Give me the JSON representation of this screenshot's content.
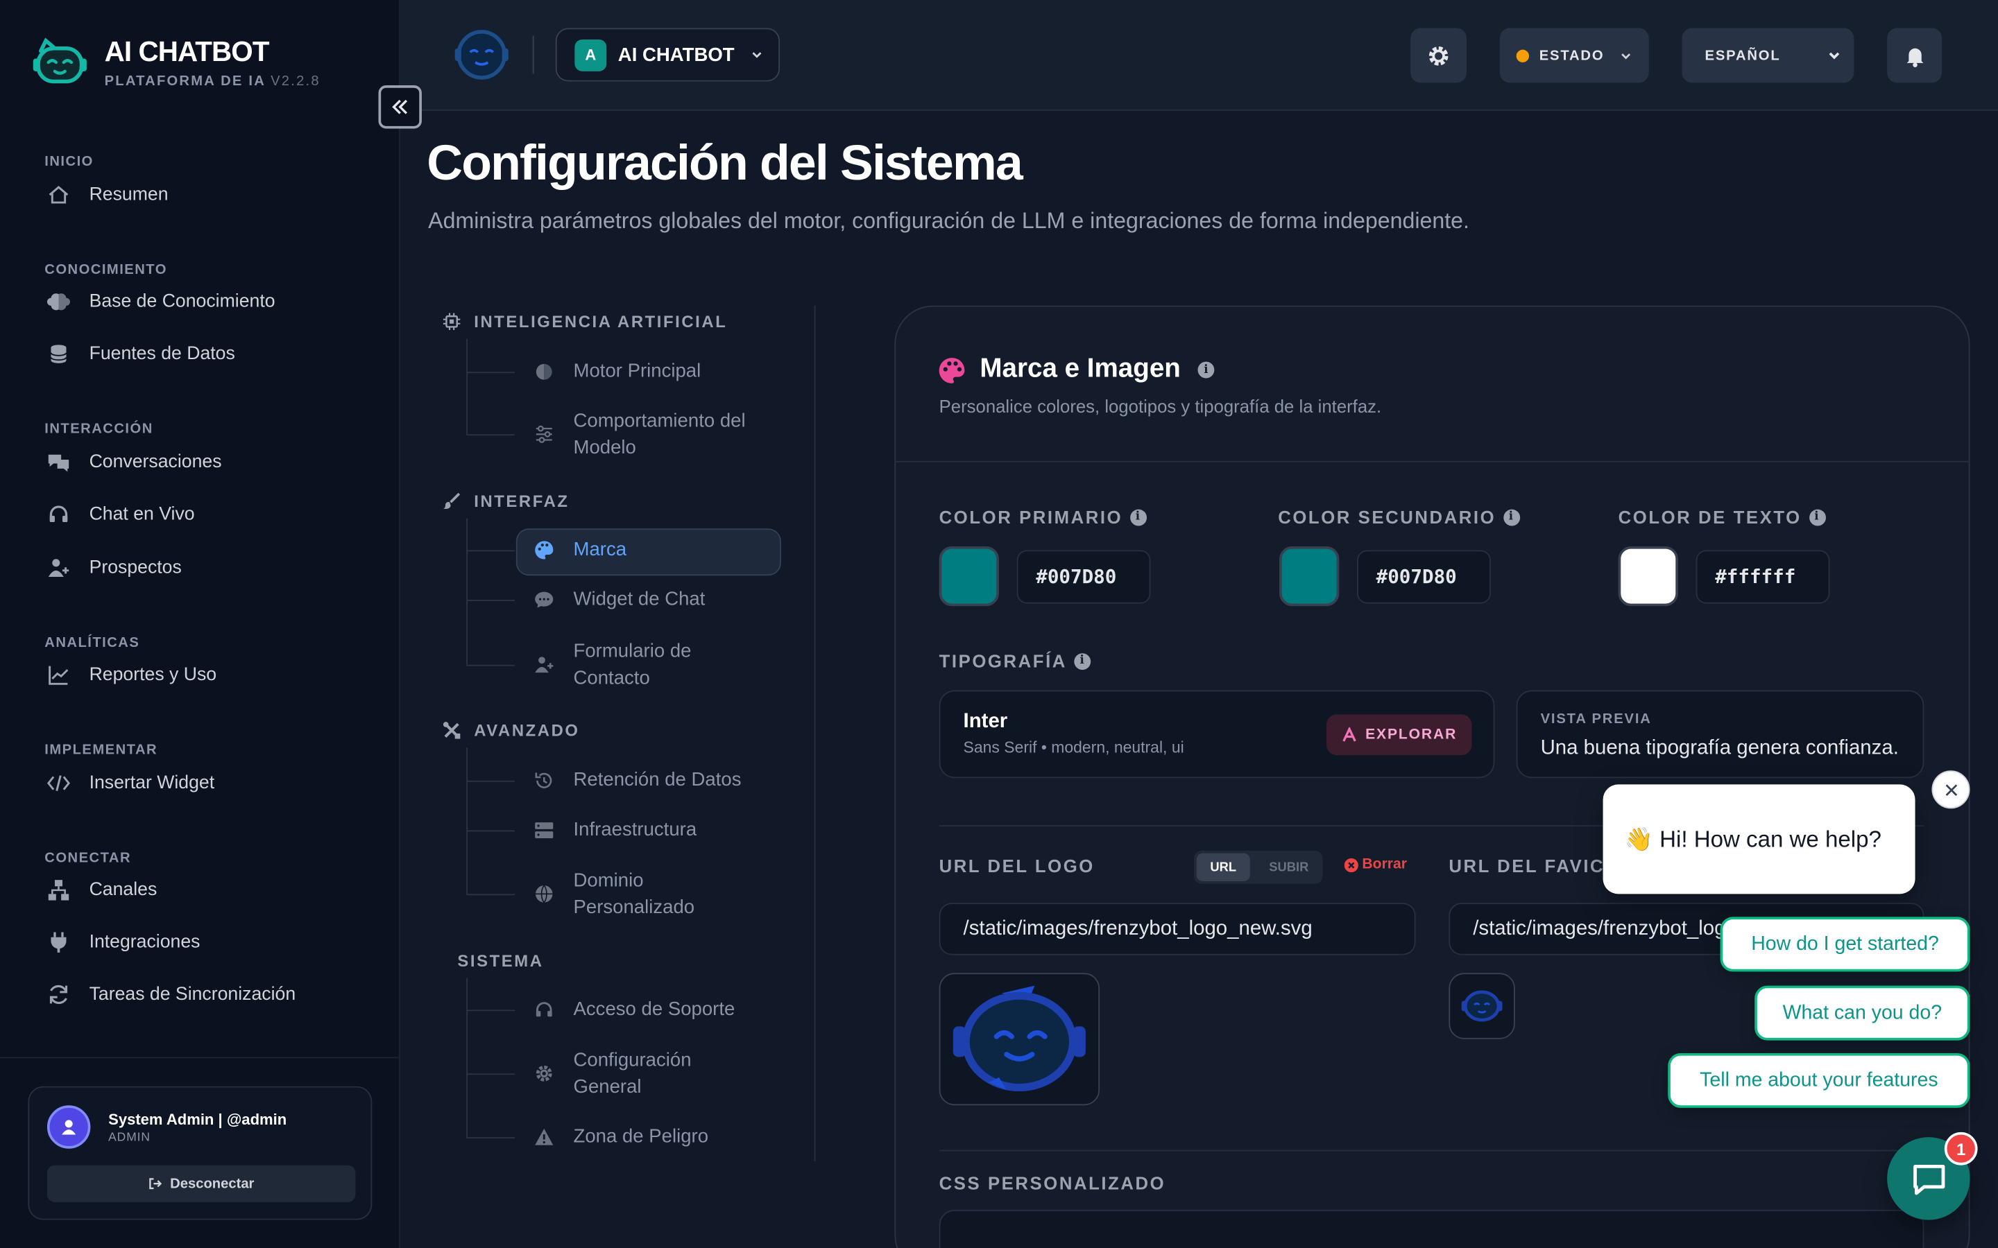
{
  "brand": {
    "title": "AI CHATBOT",
    "subtitle": "PLATAFORMA DE IA",
    "version": "V2.2.8"
  },
  "sidebar": {
    "sections": [
      {
        "label": "INICIO",
        "items": [
          {
            "label": "Resumen",
            "icon": "home-icon"
          }
        ]
      },
      {
        "label": "CONOCIMIENTO",
        "items": [
          {
            "label": "Base de Conocimiento",
            "icon": "brain-icon"
          },
          {
            "label": "Fuentes de Datos",
            "icon": "database-icon"
          }
        ]
      },
      {
        "label": "INTERACCIÓN",
        "items": [
          {
            "label": "Conversaciones",
            "icon": "chat-bubbles-icon"
          },
          {
            "label": "Chat en Vivo",
            "icon": "headset-icon"
          },
          {
            "label": "Prospectos",
            "icon": "users-icon"
          }
        ]
      },
      {
        "label": "ANALÍTICAS",
        "items": [
          {
            "label": "Reportes y Uso",
            "icon": "line-chart-icon"
          }
        ]
      },
      {
        "label": "IMPLEMENTAR",
        "items": [
          {
            "label": "Insertar Widget",
            "icon": "code-icon"
          }
        ]
      },
      {
        "label": "CONECTAR",
        "items": [
          {
            "label": "Canales",
            "icon": "network-icon"
          },
          {
            "label": "Integraciones",
            "icon": "plug-icon"
          },
          {
            "label": "Tareas de Sincronización",
            "icon": "sync-icon"
          }
        ]
      }
    ]
  },
  "user": {
    "name": "System Admin | @admin",
    "role": "ADMIN",
    "logout_label": "Desconectar"
  },
  "header": {
    "bot_initial": "A",
    "bot_name": "AI CHATBOT",
    "status_label": "ESTADO",
    "language": "ESPAÑOL"
  },
  "page": {
    "title": "Configuración del Sistema",
    "subtitle": "Administra parámetros globales del motor, configuración de LLM e integraciones de forma independiente."
  },
  "settings_nav": {
    "groups": [
      {
        "label": "INTELIGENCIA ARTIFICIAL",
        "icon": "chip-icon",
        "items": [
          "Motor Principal",
          "Comportamiento del Modelo"
        ]
      },
      {
        "label": "INTERFAZ",
        "icon": "brush-icon",
        "items": [
          "Marca",
          "Widget de Chat",
          "Formulario de Contacto"
        ]
      },
      {
        "label": "AVANZADO",
        "icon": "tools-icon",
        "items": [
          "Retención de Datos",
          "Infraestructura",
          "Dominio Personalizado"
        ]
      },
      {
        "label": "SISTEMA",
        "icon": "",
        "items": [
          "Acceso de Soporte",
          "Configuración General",
          "Zona de Peligro"
        ]
      }
    ],
    "active": "Marca"
  },
  "card": {
    "title": "Marca e Imagen",
    "subtitle": "Personalice colores, logotipos y tipografía de la interfaz.",
    "colors": [
      {
        "label": "COLOR PRIMARIO",
        "value": "#007D80",
        "swatch": "#007d80"
      },
      {
        "label": "COLOR SECUNDARIO",
        "value": "#007D80",
        "swatch": "#007d80"
      },
      {
        "label": "COLOR DE TEXTO",
        "value": "#ffffff",
        "swatch": "#ffffff"
      }
    ],
    "typography": {
      "label": "TIPOGRAFÍA",
      "font_name": "Inter",
      "font_meta": "Sans Serif • modern, neutral, ui",
      "explore_label": "EXPLORAR",
      "preview_label": "VISTA PREVIA",
      "preview_text": "Una buena tipografía genera confianza."
    },
    "logo": {
      "label": "URL DEL LOGO",
      "toggle_url": "URL",
      "toggle_upload": "SUBIR",
      "delete_label": "Borrar",
      "value": "/static/images/frenzybot_logo_new.svg"
    },
    "favicon": {
      "label": "URL DEL FAVICON",
      "value": "/static/images/frenzybot_logo_new.svg"
    },
    "css_label": "CSS PERSONALIZADO"
  },
  "chat_widget": {
    "greeting": "👋  Hi! How can we help?",
    "suggestions": [
      "How do I get started?",
      "What can you do?",
      "Tell me about your features"
    ],
    "badge_count": "1"
  },
  "colors": {
    "accent_teal": "#0d9488",
    "active_nav": "#60a5fa",
    "danger": "#ef4444"
  }
}
